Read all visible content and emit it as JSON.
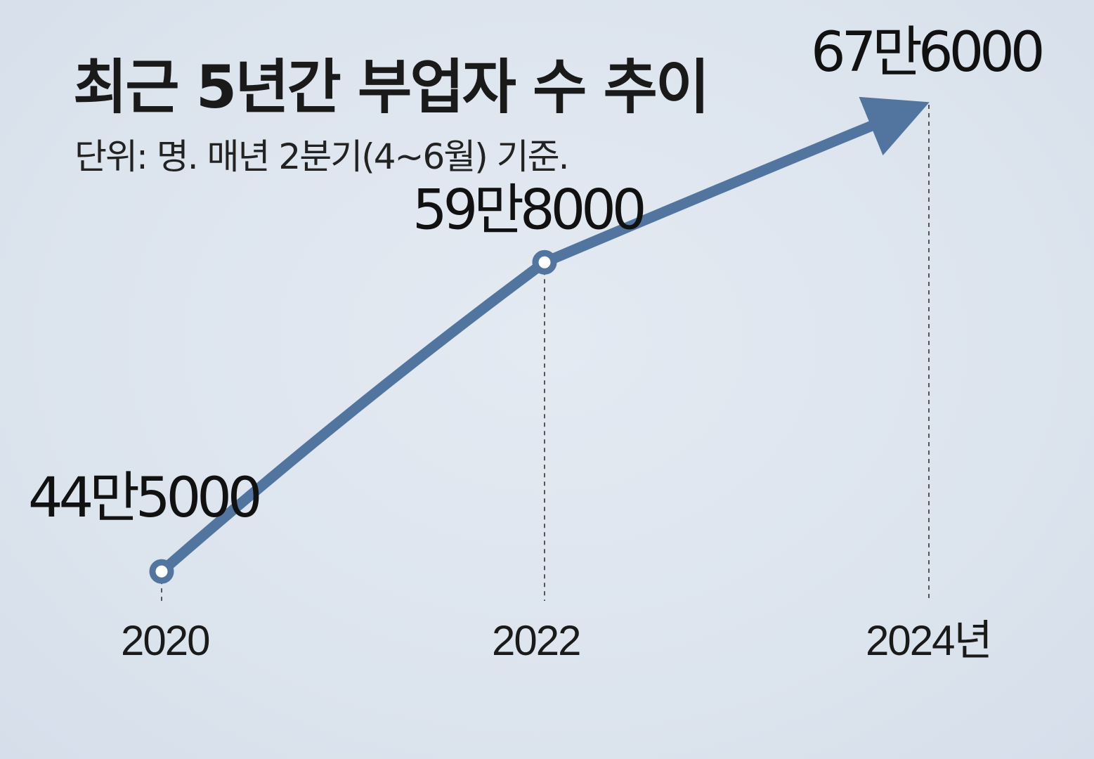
{
  "chart_data": {
    "type": "line",
    "title": "최근 5년간 부업자 수 추이",
    "subtitle": "단위: 명. 매년 2분기(4~6월) 기준.",
    "x": [
      "2020",
      "2022",
      "2024년"
    ],
    "values": [
      445000,
      598000,
      676000
    ],
    "data_labels": [
      "44만5000",
      "59만8000",
      "67만6000"
    ],
    "ylim": [
      380000,
      700000
    ],
    "grid": false,
    "legend": "none",
    "line_color": "#5275a0",
    "marker_fill": "#ffffff",
    "guide_line_color": "#555555"
  }
}
